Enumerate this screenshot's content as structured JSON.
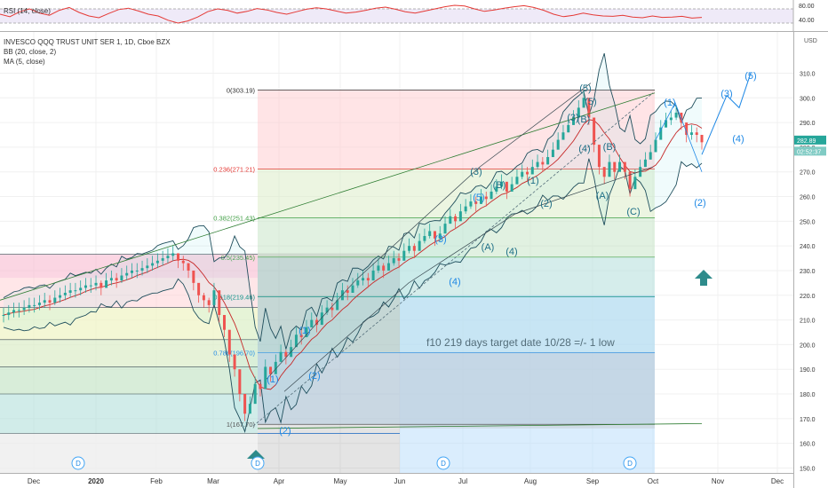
{
  "rsi": {
    "label": "RSI (14, close)",
    "ticks": [
      {
        "v": 80,
        "t": "80.00"
      },
      {
        "v": 40,
        "t": "40.00"
      }
    ],
    "values": [
      55,
      48,
      62,
      70,
      58,
      52,
      66,
      74,
      60,
      50,
      45,
      57,
      68,
      72,
      64,
      55,
      50,
      38,
      30,
      36,
      47,
      62,
      70,
      66,
      58,
      63,
      71,
      67,
      60,
      55,
      62,
      69,
      73,
      70,
      64,
      58,
      61,
      66,
      72,
      75,
      69,
      62,
      58,
      64,
      70,
      76,
      80,
      78,
      70,
      63,
      67,
      72,
      76,
      79,
      74,
      66,
      55,
      48,
      52,
      58,
      53,
      50,
      49,
      52,
      47,
      45,
      50,
      46,
      47,
      49,
      44,
      46
    ]
  },
  "header": {
    "symbol": "INVESCO QQQ TRUST UNIT SER 1, 1D, Cboe BZX",
    "bb": "BB (20, close, 2)",
    "ma": "MA (5, close)"
  },
  "chart_data": {
    "type": "candlestick",
    "ylim": [
      148,
      317
    ],
    "y_ticks": [
      150,
      160,
      170,
      180,
      190,
      200,
      210,
      220,
      230,
      240,
      250,
      260,
      270,
      280,
      290,
      300,
      310
    ],
    "currency": "USD",
    "x_axis": [
      "Dec",
      "2020",
      "Feb",
      "Mar",
      "Apr",
      "May",
      "Jun",
      "Jul",
      "Aug",
      "Sep",
      "Oct",
      "Nov",
      "Dec"
    ],
    "price_tags": [
      {
        "v": 282.89,
        "t": "282.89"
      },
      {
        "v": 278.4,
        "t": "02:52:37"
      }
    ],
    "dividend_markers": [
      "D",
      "D",
      "D",
      "D"
    ],
    "fib_levels": [
      {
        "label": "0(303.19)",
        "v": 303.19
      },
      {
        "label": "0.236(271.21)",
        "v": 271.21
      },
      {
        "label": "0.382(251.43)",
        "v": 251.43
      },
      {
        "label": "0.5(235.45)",
        "v": 235.45
      },
      {
        "label": "0.618(219.46)",
        "v": 219.46
      },
      {
        "label": "0.786(196.70)",
        "v": 196.7
      },
      {
        "label": "1(167.70)",
        "v": 167.7
      }
    ],
    "wave_labels": [
      "(5)",
      "(5)",
      "(3)",
      "(3)",
      "(4)",
      "(B)",
      "(1)",
      "(A)",
      "(C)",
      "(2)",
      "(3)",
      "(5)",
      "(B)",
      "(4)",
      "(A)",
      "(4)",
      "(B)",
      "(1)",
      "(2)",
      "(1)",
      "(2)",
      "(1)",
      "(3)",
      "(4)",
      "(5)",
      "(2)"
    ],
    "annotation": "f10 219 days target date 10/28 =/- 1 low",
    "price_series": [
      212,
      213,
      214,
      214,
      215,
      216,
      216,
      217,
      218,
      217,
      219,
      220,
      221,
      222,
      222,
      223,
      224,
      224,
      225,
      223,
      226,
      227,
      226,
      228,
      229,
      230,
      230,
      231,
      232,
      233,
      234,
      235,
      236,
      237,
      234,
      233,
      230,
      225,
      220,
      218,
      216,
      222,
      212,
      206,
      196,
      190,
      180,
      172,
      176,
      184,
      182,
      191,
      188,
      193,
      197,
      195,
      199,
      204,
      203,
      207,
      210,
      208,
      213,
      215,
      214,
      218,
      222,
      221,
      224,
      226,
      227,
      226,
      230,
      232,
      230,
      233,
      235,
      234,
      238,
      240,
      238,
      242,
      244,
      246,
      243,
      245,
      249,
      252,
      250,
      254,
      256,
      258,
      257,
      260,
      259,
      262,
      264,
      266,
      262,
      265,
      268,
      270,
      269,
      272,
      274,
      273,
      276,
      279,
      283,
      286,
      289,
      292,
      296,
      300,
      292,
      281,
      272,
      268,
      274,
      270,
      274,
      270,
      263,
      268,
      272,
      275,
      278,
      283,
      288,
      291,
      292,
      294,
      290,
      285,
      286,
      285,
      282
    ]
  }
}
